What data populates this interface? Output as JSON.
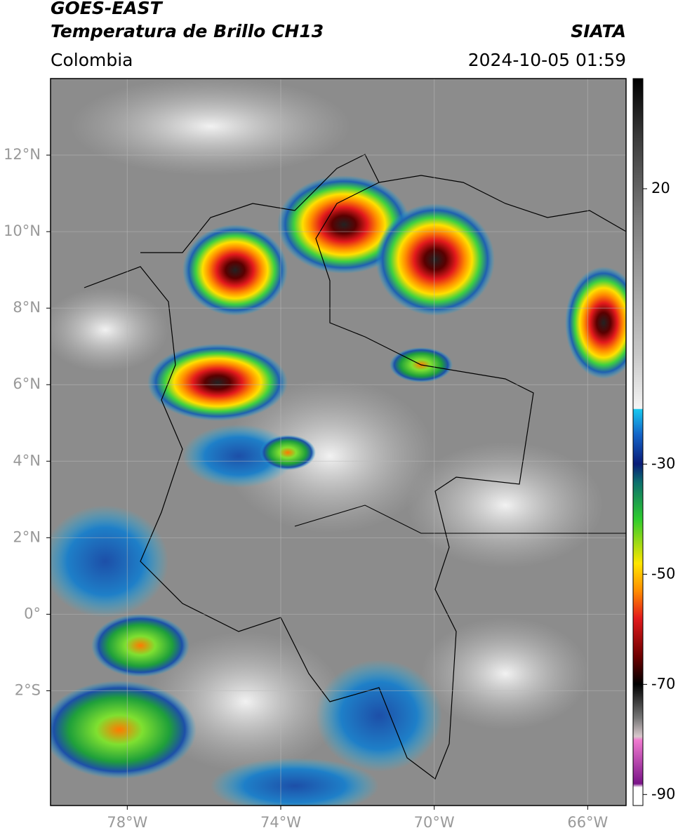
{
  "header": {
    "satellite": "GOES-EAST",
    "product": "Temperatura de Brillo CH13",
    "region": "Colombia",
    "source": "SIATA",
    "timestamp": "2024-10-05 01:59"
  },
  "map": {
    "xlim": [
      -80,
      -65
    ],
    "ylim": [
      -5,
      14
    ],
    "xticks": [
      {
        "value": -78,
        "label": "78°W"
      },
      {
        "value": -74,
        "label": "74°W"
      },
      {
        "value": -70,
        "label": "70°W"
      },
      {
        "value": -66,
        "label": "66°W"
      }
    ],
    "yticks": [
      {
        "value": 12,
        "label": "12°N"
      },
      {
        "value": 10,
        "label": "10°N"
      },
      {
        "value": 8,
        "label": "8°N"
      },
      {
        "value": 6,
        "label": "6°N"
      },
      {
        "value": 4,
        "label": "4°N"
      },
      {
        "value": 2,
        "label": "2°N"
      },
      {
        "value": 0,
        "label": "0°"
      },
      {
        "value": -2,
        "label": "2°S"
      }
    ],
    "grid": true
  },
  "colorbar": {
    "ylim": [
      -92,
      40
    ],
    "yticks": [
      20,
      -30,
      -50,
      -70,
      -90
    ]
  }
}
